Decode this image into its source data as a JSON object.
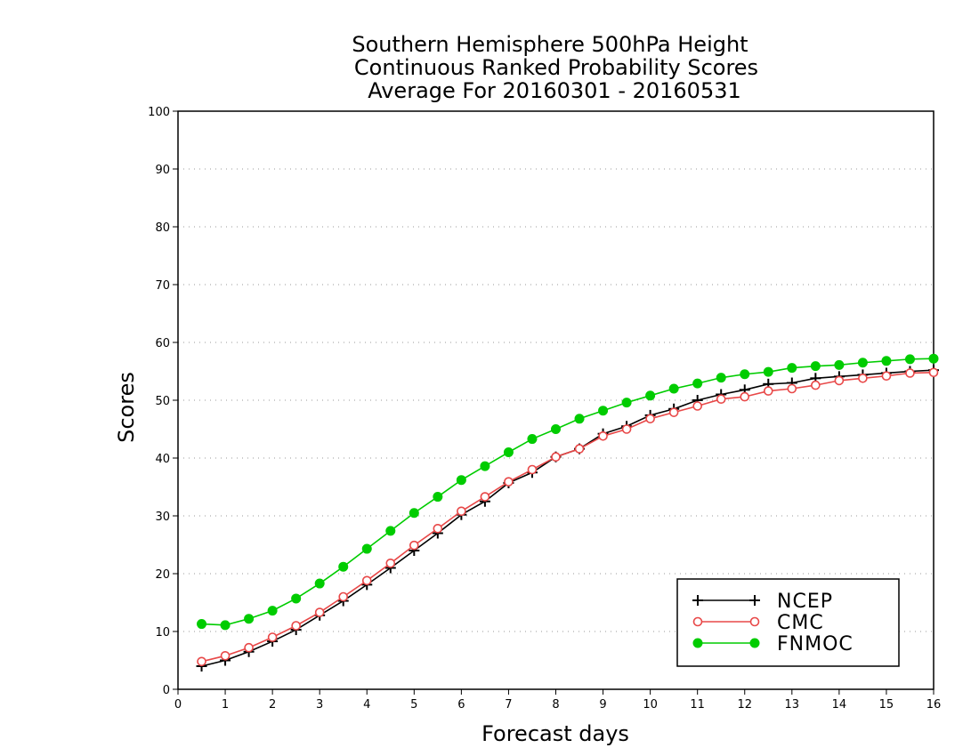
{
  "chart_data": {
    "type": "line",
    "title": [
      "Southern Hemisphere 500hPa Height",
      "Continuous Ranked Probability Scores",
      "Average For 20160301 - 20160531"
    ],
    "xlabel": "Forecast days",
    "ylabel": "Scores",
    "xlim": [
      0,
      16
    ],
    "ylim": [
      0,
      100
    ],
    "xticks": [
      "0",
      "1",
      "2",
      "3",
      "4",
      "5",
      "6",
      "7",
      "8",
      "9",
      "10",
      "11",
      "12",
      "13",
      "14",
      "15",
      "16"
    ],
    "yticks": [
      "0",
      "10",
      "20",
      "30",
      "40",
      "50",
      "60",
      "70",
      "80",
      "90",
      "100"
    ],
    "grid": true,
    "legend_position": "bottom-right",
    "x": [
      0.5,
      1,
      1.5,
      2,
      2.5,
      3,
      3.5,
      4,
      4.5,
      5,
      5.5,
      6,
      6.5,
      7,
      7.5,
      8,
      8.5,
      9,
      9.5,
      10,
      10.5,
      11,
      11.5,
      12,
      12.5,
      13,
      13.5,
      14,
      14.5,
      15,
      15.5,
      16
    ],
    "series": [
      {
        "name": "NCEP",
        "color": "#000000",
        "marker": "plus",
        "values": [
          4.0,
          5.0,
          6.5,
          8.3,
          10.3,
          12.8,
          15.3,
          18.1,
          21.0,
          24.0,
          27.0,
          30.2,
          32.5,
          35.7,
          37.5,
          40.2,
          41.6,
          44.2,
          45.5,
          47.4,
          48.5,
          50.0,
          51.0,
          51.8,
          52.8,
          53.0,
          53.8,
          54.1,
          54.4,
          54.7,
          55.0,
          55.2
        ]
      },
      {
        "name": "CMC",
        "color": "#e84848",
        "marker": "open-circle",
        "values": [
          4.8,
          5.8,
          7.2,
          9.0,
          11.0,
          13.3,
          16.0,
          18.8,
          21.8,
          24.9,
          27.8,
          30.8,
          33.3,
          35.9,
          38.0,
          40.2,
          41.6,
          43.8,
          45.0,
          46.8,
          47.9,
          49.0,
          50.2,
          50.6,
          51.6,
          52.0,
          52.6,
          53.4,
          53.8,
          54.2,
          54.7,
          54.8
        ]
      },
      {
        "name": "FNMOC",
        "color": "#00cc00",
        "marker": "filled-circle",
        "values": [
          11.3,
          11.1,
          12.2,
          13.6,
          15.7,
          18.3,
          21.2,
          24.3,
          27.4,
          30.5,
          33.3,
          36.2,
          38.6,
          41.0,
          43.3,
          45.0,
          46.8,
          48.2,
          49.6,
          50.8,
          52.0,
          52.9,
          53.9,
          54.5,
          54.9,
          55.6,
          55.9,
          56.1,
          56.5,
          56.8,
          57.1,
          57.2
        ]
      }
    ]
  }
}
